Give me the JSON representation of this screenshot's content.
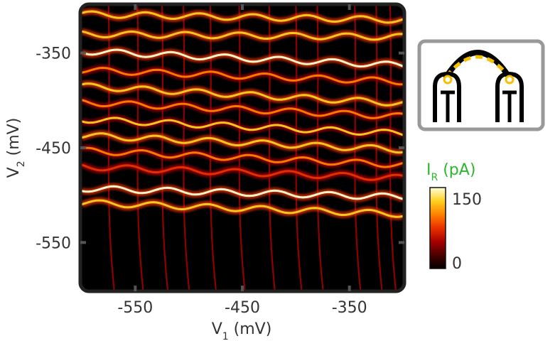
{
  "chart_data": {
    "type": "heatmap",
    "title": "",
    "xlabel_main": "V",
    "xlabel_sub": "1",
    "xlabel_unit": " (mV)",
    "ylabel_main": "V",
    "ylabel_sub": "2",
    "ylabel_unit": " (mV)",
    "xlim": [
      -600,
      -300
    ],
    "ylim": [
      -600,
      -300
    ],
    "x_ticks": [
      {
        "value": -550,
        "label": "-550"
      },
      {
        "value": -450,
        "label": "-450"
      },
      {
        "value": -350,
        "label": "-350"
      }
    ],
    "y_ticks": [
      {
        "value": -350,
        "label": "-350"
      },
      {
        "value": -450,
        "label": "-450"
      },
      {
        "value": -550,
        "label": "-550"
      }
    ],
    "colormap": [
      "#000000",
      "#4a0000",
      "#a80000",
      "#e83000",
      "#ff8000",
      "#ffd020",
      "#ffffd8"
    ],
    "colorbar": {
      "quantity_main": "I",
      "quantity_sub": "R",
      "unit": " (pA)",
      "label_color": "#2db52d",
      "min": 0,
      "max": 150,
      "min_label": "0",
      "max_label": "150"
    },
    "resonance_lines": [
      {
        "v2_at_left": -309,
        "slope": 0.02,
        "intensity": 0.9,
        "start_v1": -600
      },
      {
        "v2_at_left": -330,
        "slope": 0.01,
        "intensity": 0.85,
        "start_v1": -600
      },
      {
        "v2_at_left": -348,
        "slope": 0.05,
        "intensity": 1.0,
        "start_v1": -600
      },
      {
        "v2_at_left": -368,
        "slope": 0.04,
        "intensity": 0.6,
        "start_v1": -600
      },
      {
        "v2_at_left": -385,
        "slope": 0.06,
        "intensity": 0.8,
        "start_v1": -600
      },
      {
        "v2_at_left": -402,
        "slope": 0.05,
        "intensity": 0.7,
        "start_v1": -600
      },
      {
        "v2_at_left": -420,
        "slope": 0.05,
        "intensity": 0.75,
        "start_v1": -600
      },
      {
        "v2_at_left": -437,
        "slope": 0.05,
        "intensity": 0.8,
        "start_v1": -600
      },
      {
        "v2_at_left": -453,
        "slope": 0.05,
        "intensity": 0.6,
        "start_v1": -600
      },
      {
        "v2_at_left": -470,
        "slope": 0.04,
        "intensity": 0.5,
        "start_v1": -600
      },
      {
        "v2_at_left": -493,
        "slope": 0.03,
        "intensity": 0.95,
        "start_v1": -600
      },
      {
        "v2_at_left": -508,
        "slope": 0.04,
        "intensity": 0.9,
        "start_v1": -600
      }
    ],
    "vertical_features": [
      -575,
      -548,
      -525,
      -505,
      -480,
      -453,
      -425,
      -400,
      -380,
      -345,
      -325,
      -312
    ],
    "inset": {
      "description_free": true,
      "frame_color": "#999999",
      "wire_color": "#000000",
      "dash_color": "#f5c000"
    }
  }
}
